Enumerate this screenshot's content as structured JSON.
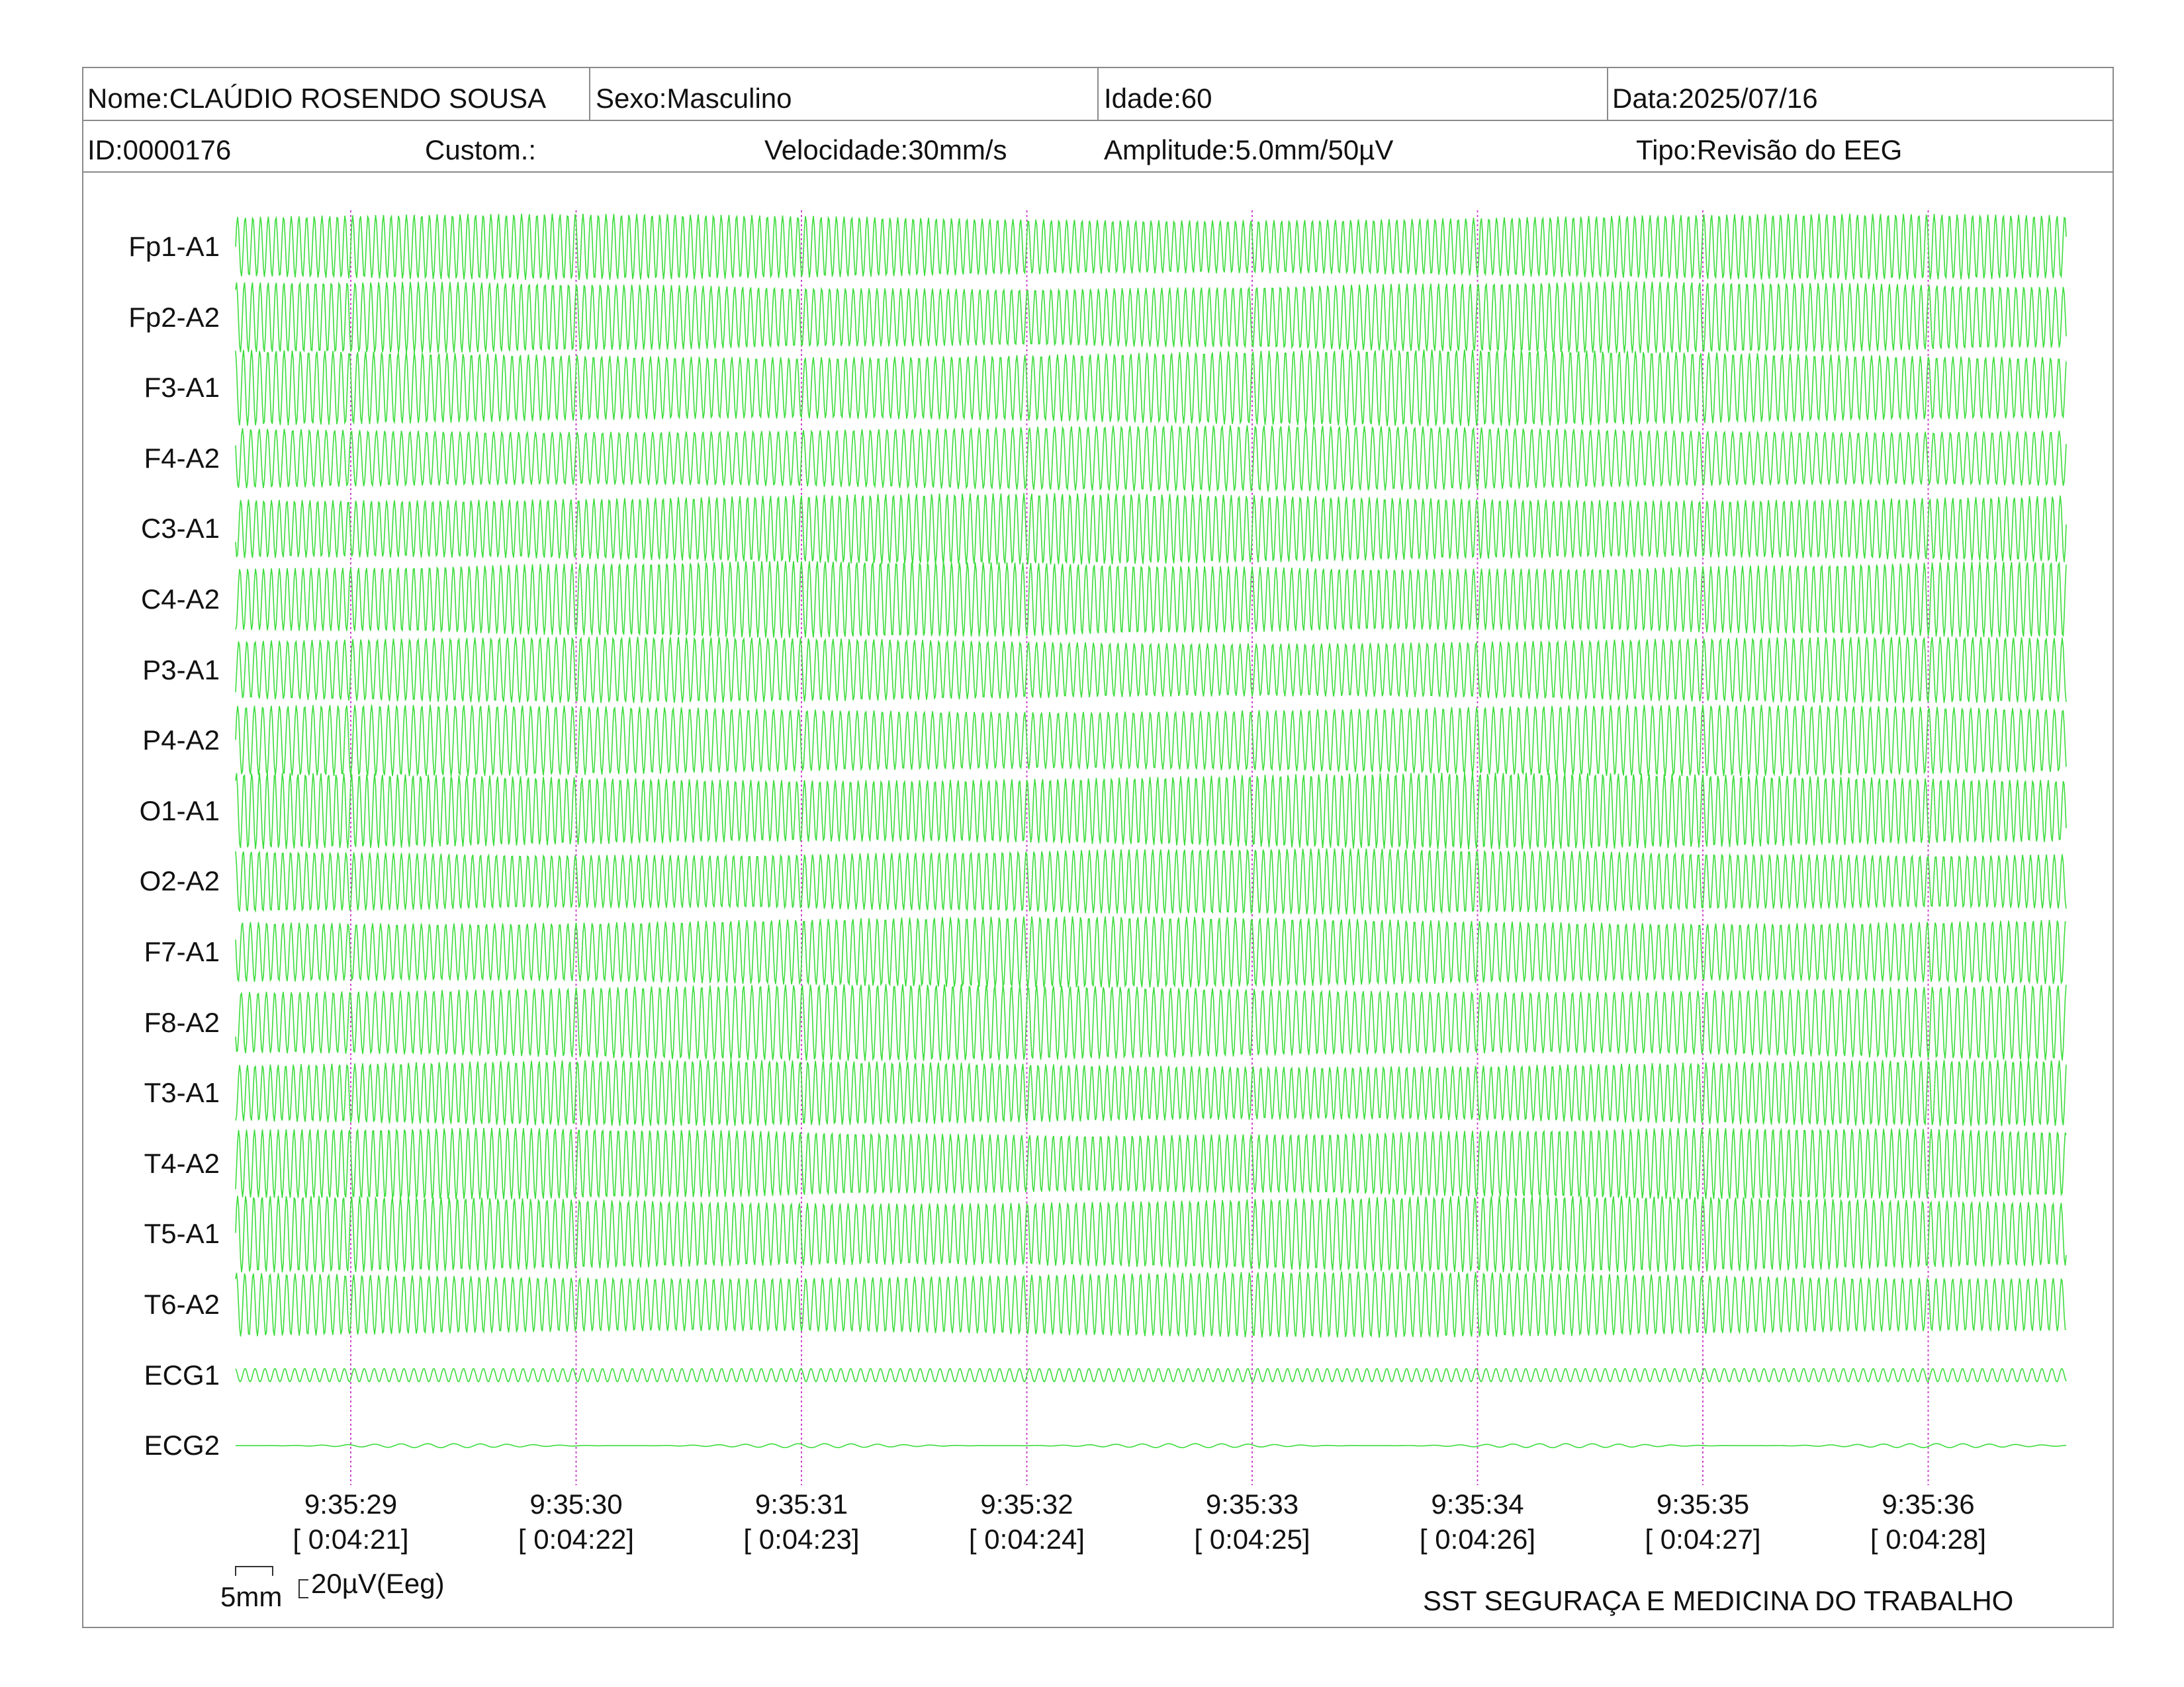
{
  "header": {
    "row1": [
      {
        "label": "Nome:",
        "value": "CLAÚDIO ROSENDO SOUSA"
      },
      {
        "label": "Sexo:",
        "value": "Masculino"
      },
      {
        "label": "Idade:",
        "value": "60"
      },
      {
        "label": "Data:",
        "value": "2025/07/16"
      }
    ],
    "row2": [
      {
        "label": "ID:",
        "value": "0000176"
      },
      {
        "label": "Custom.:",
        "value": ""
      },
      {
        "label": "Velocidade:",
        "value": "30mm/s"
      },
      {
        "label": "Amplitude:",
        "value": "5.0mm/50µV"
      },
      {
        "label": "Tipo:",
        "value": "Revisão do EEG"
      }
    ]
  },
  "chart_data": {
    "type": "line",
    "channels": [
      "Fp1-A1",
      "Fp2-A2",
      "F3-A1",
      "F4-A2",
      "C3-A1",
      "C4-A2",
      "P3-A1",
      "P4-A2",
      "O1-A1",
      "O2-A2",
      "F7-A1",
      "F8-A2",
      "T3-A1",
      "T4-A2",
      "T5-A1",
      "T6-A2",
      "ECG1",
      "ECG2"
    ],
    "time_marks": [
      {
        "clock": "9:35:29",
        "elapsed": "[ 0:04:21]"
      },
      {
        "clock": "9:35:30",
        "elapsed": "[ 0:04:22]"
      },
      {
        "clock": "9:35:31",
        "elapsed": "[ 0:04:23]"
      },
      {
        "clock": "9:35:32",
        "elapsed": "[ 0:04:24]"
      },
      {
        "clock": "9:35:33",
        "elapsed": "[ 0:04:25]"
      },
      {
        "clock": "9:35:34",
        "elapsed": "[ 0:04:26]"
      },
      {
        "clock": "9:35:35",
        "elapsed": "[ 0:04:27]"
      },
      {
        "clock": "9:35:36",
        "elapsed": "[ 0:04:28]"
      }
    ],
    "trace_color": "#3ddc3d",
    "time_marker_color": "#cc44cc",
    "grid": false
  },
  "calibration": {
    "time_scale": "5mm",
    "amplitude_scale": "20µV(Eeg)"
  },
  "footer": {
    "brand": "SST SEGURAÇA E MEDICINA DO TRABALHO"
  }
}
